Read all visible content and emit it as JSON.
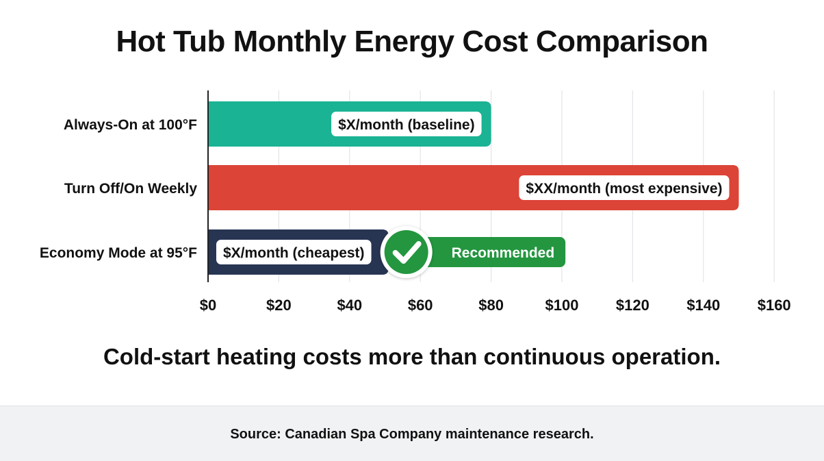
{
  "chart_data": {
    "type": "bar",
    "orientation": "horizontal",
    "title": "Hot Tub Monthly Energy Cost Comparison",
    "subtitle": "Cold-start heating costs more than continuous operation.",
    "categories": [
      "Always-On at 100°F",
      "Turn Off/On Weekly",
      "Economy Mode at 95°F"
    ],
    "values": [
      80,
      150,
      51
    ],
    "bar_labels": [
      "$X/month (baseline)",
      "$XX/month (most expensive)",
      "$X/month (cheapest)"
    ],
    "bar_colors": [
      "#1ab394",
      "#dc4437",
      "#273552"
    ],
    "xlim": [
      0,
      160
    ],
    "xticks": [
      0,
      20,
      40,
      60,
      80,
      100,
      120,
      140,
      160
    ],
    "xtick_labels": [
      "$0",
      "$20",
      "$40",
      "$60",
      "$80",
      "$100",
      "$120",
      "$140",
      "$160"
    ],
    "grid": "vertical",
    "annotation": {
      "text": "Recommended",
      "category_index": 2,
      "color": "#23963f",
      "icon": "checkmark-icon",
      "end_value": 101
    }
  },
  "footer": {
    "source": "Source: Canadian Spa Company maintenance research."
  }
}
